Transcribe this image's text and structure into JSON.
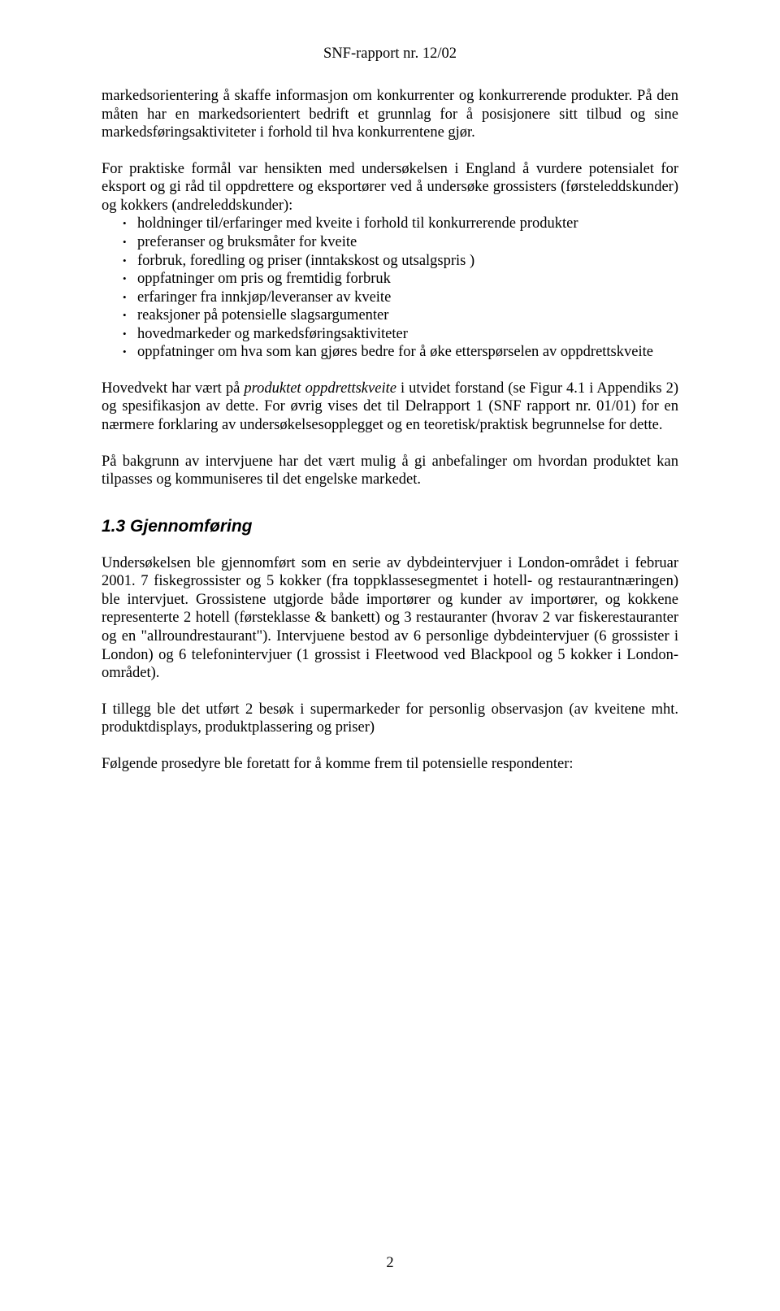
{
  "document": {
    "background_color": "#ffffff",
    "text_color": "#000000",
    "body_font_family": "Times New Roman",
    "heading_font_family": "Arial",
    "body_font_size_pt": 14,
    "heading_font_size_pt": 16
  },
  "header": "SNF-rapport nr. 12/02",
  "p1": "markedsorientering å skaffe informasjon om konkurrenter og konkurrerende produkter. På den måten har en markedsorientert bedrift et grunnlag for å posisjonere sitt tilbud og sine markedsføringsaktiviteter i forhold til hva konkurrentene gjør.",
  "p2": "For praktiske formål var hensikten med undersøkelsen i England å vurdere potensialet for eksport og gi råd til oppdrettere og eksportører ved å undersøke grossisters (førsteleddskunder) og kokkers (andreleddskunder):",
  "bullets": [
    "holdninger til/erfaringer med kveite i forhold til konkurrerende produkter",
    "preferanser og bruksmåter for kveite",
    "forbruk, foredling og priser (inntakskost og utsalgspris )",
    "oppfatninger om pris og fremtidig forbruk",
    "erfaringer fra innkjøp/leveranser av kveite",
    "reaksjoner på potensielle slagsargumenter",
    "hovedmarkeder og markedsføringsaktiviteter",
    "oppfatninger om hva som kan gjøres bedre for å øke etterspørselen av oppdrettskveite"
  ],
  "p3a": "Hovedvekt har vært på ",
  "p3_italic": "produktet oppdrettskveite",
  "p3b": " i utvidet forstand (se Figur 4.1 i Appendiks 2) og spesifikasjon av dette. For øvrig vises det til Delrapport 1 (SNF rapport nr. 01/01) for en nærmere forklaring av undersøkelsesopplegget og en teoretisk/praktisk begrunnelse for dette.",
  "p4": "På bakgrunn av intervjuene har det vært mulig å gi anbefalinger om hvordan produktet kan tilpasses og kommuniseres til det engelske markedet.",
  "h2": "1.3 Gjennomføring",
  "p5": "Undersøkelsen ble gjennomført som en serie av dybdeintervjuer i London-området i februar 2001. 7 fiskegrossister og 5 kokker (fra toppklassesegmentet i hotell- og restaurantnæringen) ble intervjuet. Grossistene utgjorde både importører og kunder av importører, og kokkene representerte 2 hotell (førsteklasse & bankett) og 3 restauranter (hvorav 2 var fiskerestauranter og en \"allroundrestaurant\"). Intervjuene bestod av 6 personlige dybdeintervjuer (6 grossister i London) og 6 telefonintervjuer (1 grossist i Fleetwood ved Blackpool og 5 kokker i London-området).",
  "p6": "I tillegg ble det utført 2 besøk i supermarkeder for personlig observasjon (av kveitene mht. produktdisplays, produktplassering og priser)",
  "p7": "Følgende prosedyre ble foretatt for å komme frem til potensielle respondenter:",
  "page_number": "2"
}
